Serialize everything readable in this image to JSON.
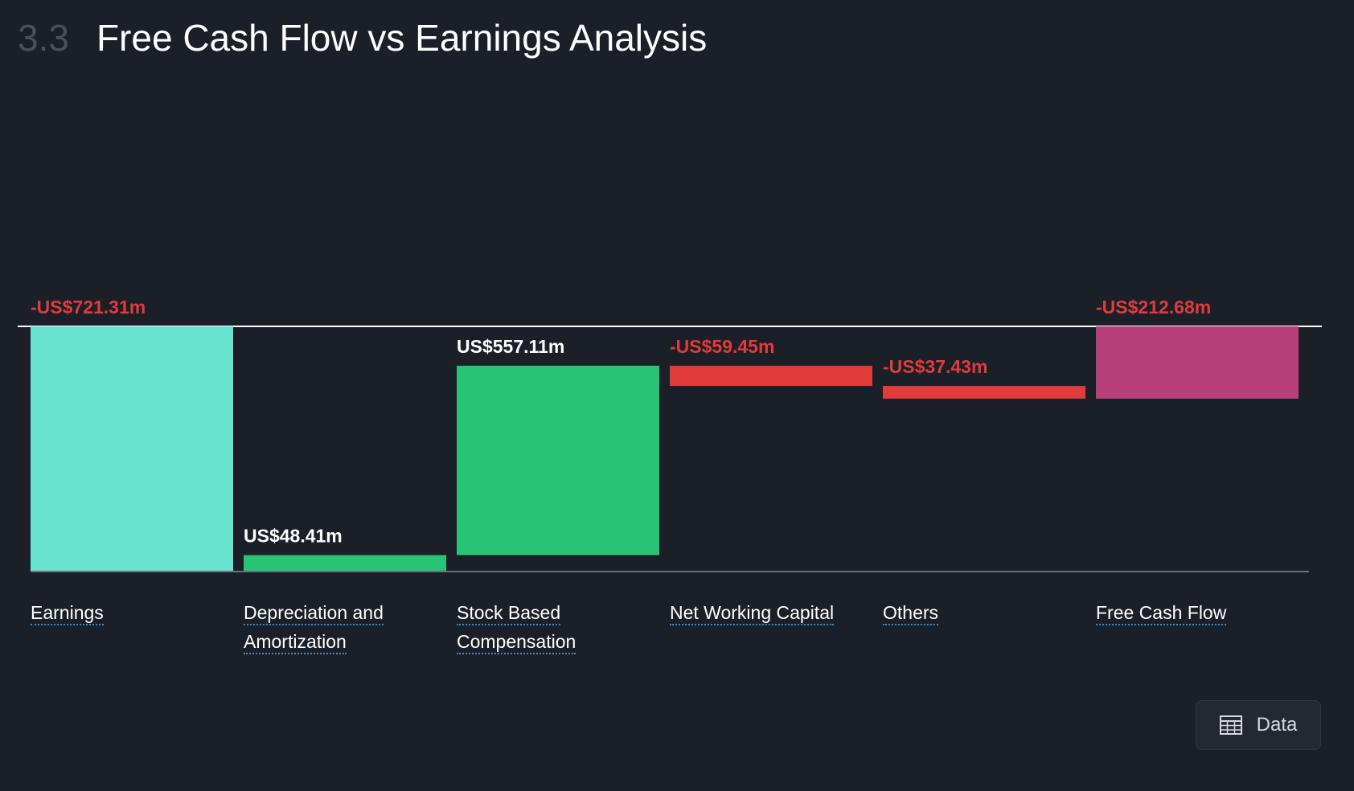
{
  "header": {
    "section_number": "3.3",
    "title": "Free Cash Flow vs Earnings Analysis"
  },
  "chart_data": {
    "type": "bar",
    "subtype": "waterfall",
    "unit": "US$ millions",
    "categories": [
      "Earnings",
      "Depreciation and Amortization",
      "Stock Based Compensation",
      "Net Working Capital",
      "Others",
      "Free Cash Flow"
    ],
    "values": [
      -721.31,
      48.41,
      557.11,
      -59.45,
      -37.43,
      -212.68
    ],
    "value_labels": [
      "-US$721.31m",
      "US$48.41m",
      "US$557.11m",
      "-US$59.45m",
      "-US$37.43m",
      "-US$212.68m"
    ],
    "bar_kinds": [
      "total",
      "delta",
      "delta",
      "delta",
      "delta",
      "total"
    ],
    "colors": {
      "earnings": "#67e3d0",
      "positive": "#27c474",
      "negative": "#e23b3b",
      "free_cash_flow": "#b7407b",
      "label_positive": "#ffffff",
      "label_negative": "#e23b3b"
    },
    "ylim": [
      -721.31,
      0
    ]
  },
  "data_button": {
    "label": "Data",
    "icon": "table-icon"
  }
}
